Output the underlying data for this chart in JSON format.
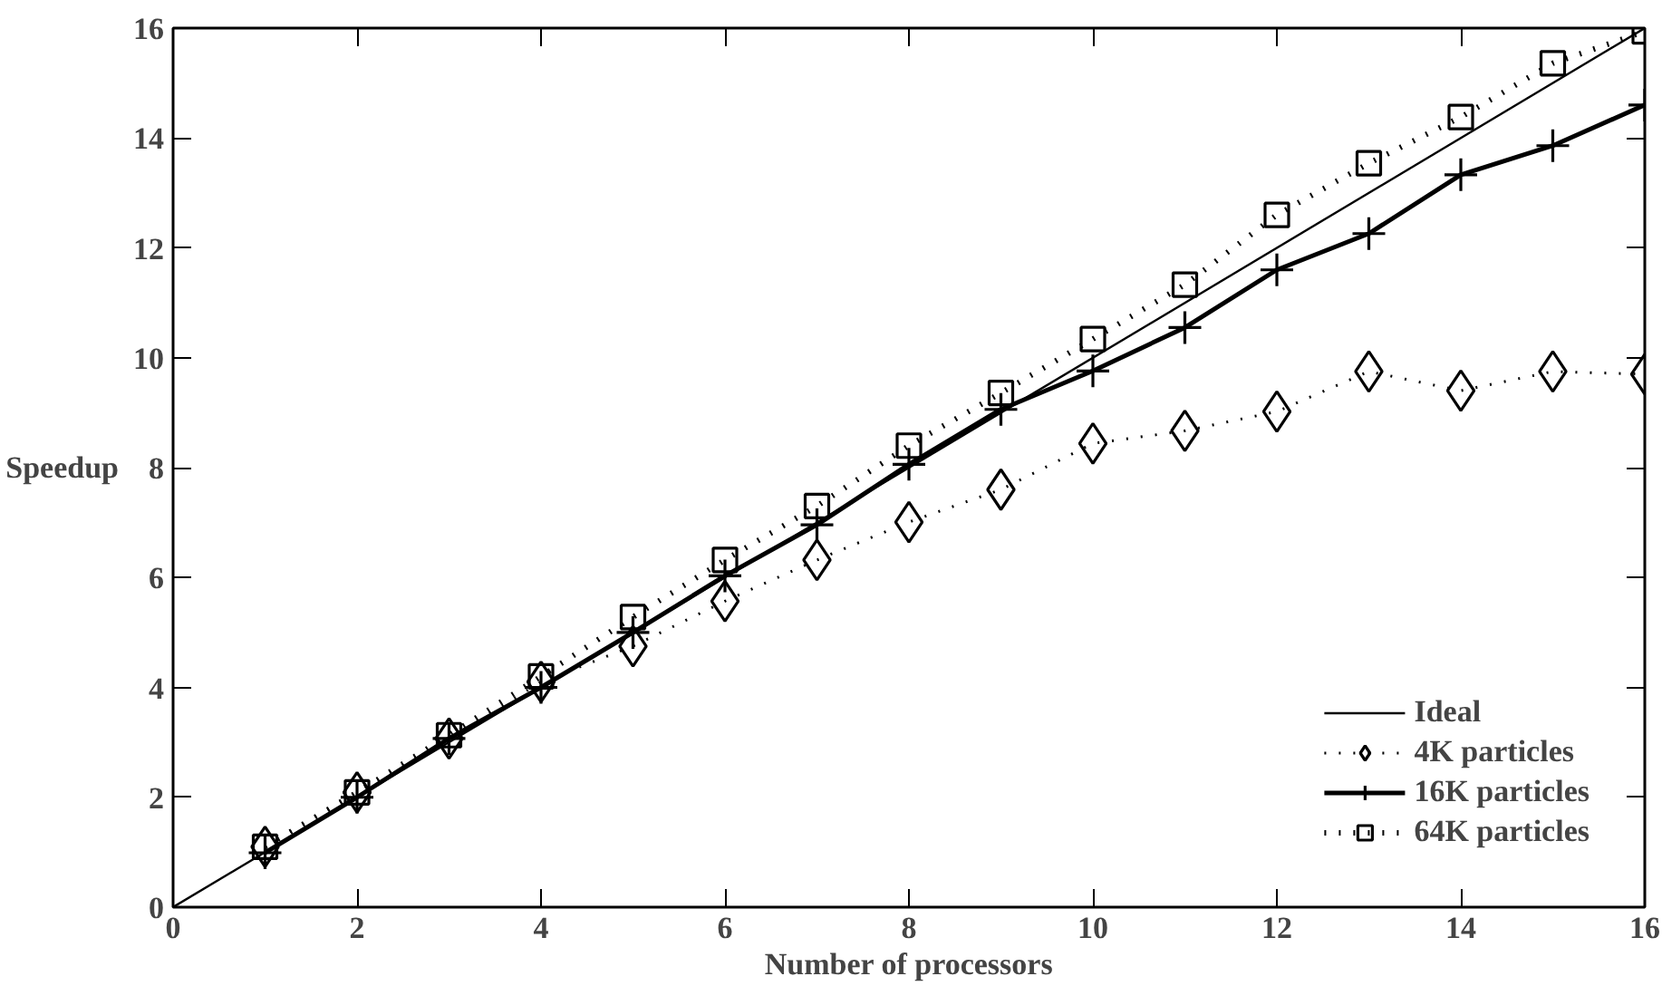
{
  "chart_data": {
    "type": "line",
    "xlabel": "Number of processors",
    "ylabel": "Speedup",
    "xlim": [
      0,
      16
    ],
    "ylim": [
      0,
      16
    ],
    "xticks": [
      0,
      2,
      4,
      6,
      8,
      10,
      12,
      14,
      16
    ],
    "yticks": [
      0,
      2,
      4,
      6,
      8,
      10,
      12,
      14,
      16
    ],
    "grid": false,
    "legend": "bottom right",
    "series": [
      {
        "name": "Ideal",
        "color": "#000000",
        "x": [
          0,
          16
        ],
        "values": [
          0,
          16
        ],
        "marker": "none",
        "line_style": "solid"
      },
      {
        "name": "4K particles",
        "color": "#000000",
        "x": [
          1,
          2,
          3,
          4,
          5,
          6,
          7,
          8,
          9,
          10,
          11,
          12,
          13,
          14,
          15,
          16
        ],
        "values": [
          1.1,
          2.09,
          3.07,
          4.1,
          4.75,
          5.57,
          6.32,
          7.01,
          7.6,
          8.44,
          8.67,
          9.02,
          9.75,
          9.4,
          9.75,
          9.7
        ],
        "marker": "diamond",
        "line_style": "dotted"
      },
      {
        "name": "16K particles",
        "color": "#000000",
        "x": [
          1,
          2,
          3,
          4,
          5,
          6,
          7,
          8,
          9,
          10,
          11,
          12,
          13,
          14,
          15,
          16
        ],
        "values": [
          0.99,
          2.0,
          3.07,
          4.0,
          5.0,
          6.03,
          6.96,
          8.06,
          9.06,
          9.76,
          10.55,
          11.6,
          12.26,
          13.33,
          13.86,
          14.6
        ],
        "marker": "cross",
        "line_style": "solid"
      },
      {
        "name": "64K particles",
        "color": "#000000",
        "x": [
          1,
          2,
          3,
          4,
          5,
          6,
          7,
          8,
          9,
          10,
          11,
          12,
          13,
          14,
          15,
          16
        ],
        "values": [
          1.1,
          2.09,
          3.13,
          4.2,
          5.28,
          6.32,
          7.3,
          8.4,
          9.36,
          10.34,
          11.33,
          12.6,
          13.54,
          14.38,
          15.36,
          15.94
        ],
        "marker": "square",
        "line_style": "dotted"
      }
    ]
  }
}
